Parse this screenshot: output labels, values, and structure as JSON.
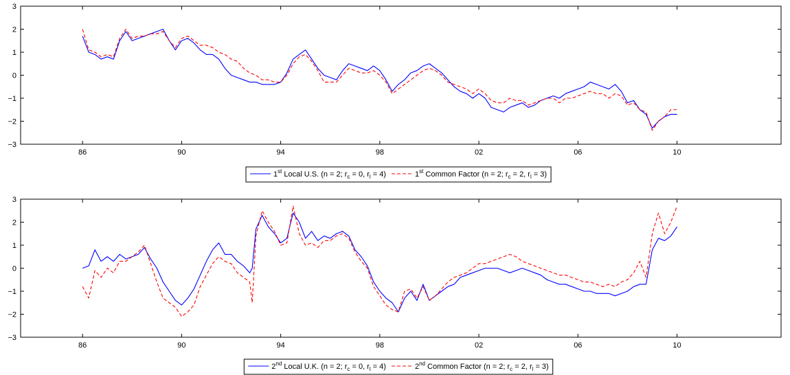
{
  "chart_data": [
    {
      "type": "line",
      "title": "",
      "xlabel": "",
      "ylabel": "",
      "xlim": [
        1983.5,
        2014.2
      ],
      "ylim": [
        -3,
        3
      ],
      "x_ticks": [
        1986,
        1990,
        1994,
        1998,
        2002,
        2006,
        2010
      ],
      "x_tick_labels": [
        "86",
        "90",
        "94",
        "98",
        "02",
        "06",
        "10"
      ],
      "y_ticks": [
        -3,
        -2,
        -1,
        0,
        1,
        2,
        3
      ],
      "y_tick_labels": [
        "−3",
        "−2",
        "−1",
        "0",
        "1",
        "2",
        "3"
      ],
      "grid": false,
      "legend_position": "bottom-center",
      "series": [
        {
          "legend": {
            "pre": "1",
            "sup": "st",
            "mid1": " Local U.S. (n = 2; r",
            "sub1": "c",
            "mid2": " = 0, r",
            "sub2": "l",
            "post": " = 4)"
          },
          "color": "#0000ff",
          "dash": "solid",
          "x": [
            1986.0,
            1986.25,
            1986.5,
            1986.75,
            1987.0,
            1987.25,
            1987.5,
            1987.75,
            1988.0,
            1988.25,
            1988.5,
            1988.75,
            1989.0,
            1989.25,
            1989.5,
            1989.75,
            1990.0,
            1990.25,
            1990.5,
            1990.75,
            1991.0,
            1991.25,
            1991.5,
            1991.75,
            1992.0,
            1992.25,
            1992.5,
            1992.75,
            1993.0,
            1993.25,
            1993.5,
            1993.75,
            1994.0,
            1994.25,
            1994.5,
            1994.75,
            1995.0,
            1995.25,
            1995.5,
            1995.75,
            1996.0,
            1996.25,
            1996.5,
            1996.75,
            1997.0,
            1997.25,
            1997.5,
            1997.75,
            1998.0,
            1998.25,
            1998.5,
            1998.75,
            1999.0,
            1999.25,
            1999.5,
            1999.75,
            2000.0,
            2000.25,
            2000.5,
            2000.75,
            2001.0,
            2001.25,
            2001.5,
            2001.75,
            2002.0,
            2002.25,
            2002.5,
            2002.75,
            2003.0,
            2003.25,
            2003.5,
            2003.75,
            2004.0,
            2004.25,
            2004.5,
            2004.75,
            2005.0,
            2005.25,
            2005.5,
            2005.75,
            2006.0,
            2006.25,
            2006.5,
            2006.75,
            2007.0,
            2007.25,
            2007.5,
            2007.75,
            2008.0,
            2008.25,
            2008.5,
            2008.75,
            2009.0,
            2009.25,
            2009.5,
            2009.75,
            2010.0
          ],
          "y": [
            1.7,
            1.0,
            0.9,
            0.7,
            0.8,
            0.7,
            1.5,
            1.9,
            1.5,
            1.6,
            1.7,
            1.8,
            1.9,
            2.0,
            1.5,
            1.1,
            1.5,
            1.6,
            1.4,
            1.1,
            0.9,
            0.9,
            0.7,
            0.3,
            0.0,
            -0.1,
            -0.2,
            -0.3,
            -0.3,
            -0.4,
            -0.4,
            -0.4,
            -0.3,
            0.1,
            0.7,
            0.9,
            1.1,
            0.7,
            0.3,
            0.0,
            -0.1,
            -0.2,
            0.2,
            0.5,
            0.4,
            0.3,
            0.2,
            0.4,
            0.2,
            -0.2,
            -0.7,
            -0.4,
            -0.2,
            0.1,
            0.2,
            0.4,
            0.5,
            0.3,
            0.1,
            -0.2,
            -0.5,
            -0.7,
            -0.8,
            -1.0,
            -0.8,
            -1.0,
            -1.4,
            -1.5,
            -1.6,
            -1.4,
            -1.3,
            -1.2,
            -1.4,
            -1.3,
            -1.1,
            -1.0,
            -0.9,
            -1.0,
            -0.8,
            -0.7,
            -0.6,
            -0.5,
            -0.3,
            -0.4,
            -0.5,
            -0.6,
            -0.4,
            -0.7,
            -1.2,
            -1.1,
            -1.5,
            -1.7,
            -2.3,
            -2.0,
            -1.8,
            -1.7,
            -1.7
          ]
        },
        {
          "legend": {
            "pre": "1",
            "sup": "st",
            "mid1": " Common Factor (n = 2; r",
            "sub1": "c",
            "mid2": " = 2, r",
            "sub2": "l",
            "post": " = 3)"
          },
          "color": "#ff0000",
          "dash": "dashed",
          "x": [
            1986.0,
            1986.25,
            1986.5,
            1986.75,
            1987.0,
            1987.25,
            1987.5,
            1987.75,
            1988.0,
            1988.25,
            1988.5,
            1988.75,
            1989.0,
            1989.25,
            1989.5,
            1989.75,
            1990.0,
            1990.25,
            1990.5,
            1990.75,
            1991.0,
            1991.25,
            1991.5,
            1991.75,
            1992.0,
            1992.25,
            1992.5,
            1992.75,
            1993.0,
            1993.25,
            1993.5,
            1993.75,
            1994.0,
            1994.25,
            1994.5,
            1994.75,
            1995.0,
            1995.25,
            1995.5,
            1995.75,
            1996.0,
            1996.25,
            1996.5,
            1996.75,
            1997.0,
            1997.25,
            1997.5,
            1997.75,
            1998.0,
            1998.25,
            1998.5,
            1998.75,
            1999.0,
            1999.25,
            1999.5,
            1999.75,
            2000.0,
            2000.25,
            2000.5,
            2000.75,
            2001.0,
            2001.25,
            2001.5,
            2001.75,
            2002.0,
            2002.25,
            2002.5,
            2002.75,
            2003.0,
            2003.25,
            2003.5,
            2003.75,
            2004.0,
            2004.25,
            2004.5,
            2004.75,
            2005.0,
            2005.25,
            2005.5,
            2005.75,
            2006.0,
            2006.25,
            2006.5,
            2006.75,
            2007.0,
            2007.25,
            2007.5,
            2007.75,
            2008.0,
            2008.25,
            2008.5,
            2008.75,
            2009.0,
            2009.25,
            2009.5,
            2009.75,
            2010.0
          ],
          "y": [
            2.0,
            1.1,
            1.0,
            0.8,
            0.9,
            0.8,
            1.6,
            2.0,
            1.6,
            1.7,
            1.7,
            1.8,
            1.8,
            1.9,
            1.5,
            1.2,
            1.6,
            1.7,
            1.5,
            1.3,
            1.3,
            1.2,
            1.0,
            0.9,
            0.7,
            0.6,
            0.3,
            0.1,
            0.0,
            -0.2,
            -0.2,
            -0.3,
            -0.3,
            0.0,
            0.5,
            0.8,
            0.9,
            0.6,
            0.2,
            -0.3,
            -0.3,
            -0.3,
            0.0,
            0.3,
            0.2,
            0.1,
            0.1,
            0.2,
            0.0,
            -0.3,
            -0.8,
            -0.6,
            -0.4,
            -0.2,
            0.0,
            0.2,
            0.3,
            0.2,
            0.0,
            -0.3,
            -0.4,
            -0.5,
            -0.6,
            -0.8,
            -0.6,
            -0.8,
            -1.1,
            -1.2,
            -1.2,
            -1.0,
            -1.1,
            -1.1,
            -1.3,
            -1.2,
            -1.1,
            -1.0,
            -1.0,
            -1.2,
            -1.0,
            -1.0,
            -0.9,
            -0.8,
            -0.7,
            -0.8,
            -0.8,
            -1.0,
            -0.8,
            -0.9,
            -1.3,
            -1.2,
            -1.5,
            -1.6,
            -2.4,
            -2.0,
            -1.8,
            -1.5,
            -1.5
          ]
        }
      ]
    },
    {
      "type": "line",
      "title": "",
      "xlabel": "",
      "ylabel": "",
      "xlim": [
        1983.5,
        2014.2
      ],
      "ylim": [
        -3,
        3
      ],
      "x_ticks": [
        1986,
        1990,
        1994,
        1998,
        2002,
        2006,
        2010
      ],
      "x_tick_labels": [
        "86",
        "90",
        "94",
        "98",
        "02",
        "06",
        "10"
      ],
      "y_ticks": [
        -3,
        -2,
        -1,
        0,
        1,
        2,
        3
      ],
      "y_tick_labels": [
        "−3",
        "−2",
        "−1",
        "0",
        "1",
        "2",
        "3"
      ],
      "grid": false,
      "legend_position": "bottom-center",
      "series": [
        {
          "legend": {
            "pre": "2",
            "sup": "nd",
            "mid1": " Local U.K. (n = 2; r",
            "sub1": "c",
            "mid2": " = 0, r",
            "sub2": "l",
            "post": " = 4)"
          },
          "color": "#0000ff",
          "dash": "solid",
          "x": [
            1986.0,
            1986.25,
            1986.5,
            1986.75,
            1987.0,
            1987.25,
            1987.5,
            1987.75,
            1988.0,
            1988.25,
            1988.5,
            1988.75,
            1989.0,
            1989.25,
            1989.5,
            1989.75,
            1990.0,
            1990.25,
            1990.5,
            1990.75,
            1991.0,
            1991.25,
            1991.5,
            1991.75,
            1992.0,
            1992.25,
            1992.5,
            1992.75,
            1992.85,
            1993.0,
            1993.25,
            1993.5,
            1993.75,
            1994.0,
            1994.25,
            1994.5,
            1994.75,
            1995.0,
            1995.25,
            1995.5,
            1995.75,
            1996.0,
            1996.25,
            1996.5,
            1996.75,
            1997.0,
            1997.25,
            1997.5,
            1997.75,
            1998.0,
            1998.25,
            1998.5,
            1998.75,
            1999.0,
            1999.25,
            1999.5,
            1999.75,
            2000.0,
            2000.25,
            2000.5,
            2000.75,
            2001.0,
            2001.25,
            2001.5,
            2001.75,
            2002.0,
            2002.25,
            2002.5,
            2002.75,
            2003.0,
            2003.25,
            2003.5,
            2003.75,
            2004.0,
            2004.25,
            2004.5,
            2004.75,
            2005.0,
            2005.25,
            2005.5,
            2005.75,
            2006.0,
            2006.25,
            2006.5,
            2006.75,
            2007.0,
            2007.25,
            2007.5,
            2007.75,
            2008.0,
            2008.25,
            2008.5,
            2008.75,
            2009.0,
            2009.25,
            2009.5,
            2009.75,
            2010.0
          ],
          "y": [
            0.0,
            0.1,
            0.8,
            0.3,
            0.5,
            0.3,
            0.6,
            0.4,
            0.5,
            0.6,
            0.9,
            0.4,
            0.0,
            -0.6,
            -1.0,
            -1.4,
            -1.6,
            -1.3,
            -0.9,
            -0.3,
            0.3,
            0.8,
            1.1,
            0.6,
            0.6,
            0.3,
            0.1,
            -0.2,
            0.0,
            1.7,
            2.3,
            1.8,
            1.5,
            1.1,
            1.3,
            2.4,
            2.0,
            1.3,
            1.6,
            1.2,
            1.4,
            1.3,
            1.5,
            1.6,
            1.4,
            0.8,
            0.5,
            0.1,
            -0.6,
            -1.0,
            -1.3,
            -1.5,
            -1.9,
            -1.3,
            -1.0,
            -1.4,
            -0.7,
            -1.4,
            -1.2,
            -1.0,
            -0.8,
            -0.7,
            -0.4,
            -0.3,
            -0.2,
            -0.1,
            0.0,
            0.0,
            0.0,
            -0.1,
            -0.2,
            -0.1,
            0.0,
            -0.1,
            -0.2,
            -0.3,
            -0.5,
            -0.6,
            -0.7,
            -0.7,
            -0.8,
            -0.9,
            -1.0,
            -1.0,
            -1.1,
            -1.1,
            -1.1,
            -1.2,
            -1.1,
            -1.0,
            -0.8,
            -0.7,
            -0.7,
            0.8,
            1.3,
            1.2,
            1.4,
            1.8
          ]
        },
        {
          "legend": {
            "pre": "2",
            "sup": "nd",
            "mid1": " Common Factor (n = 2; r",
            "sub1": "c",
            "mid2": " = 2, r",
            "sub2": "l",
            "post": " = 3)"
          },
          "color": "#ff0000",
          "dash": "dashed",
          "x": [
            1986.0,
            1986.25,
            1986.5,
            1986.75,
            1987.0,
            1987.25,
            1987.5,
            1987.75,
            1988.0,
            1988.25,
            1988.5,
            1988.75,
            1989.0,
            1989.25,
            1989.5,
            1989.75,
            1990.0,
            1990.25,
            1990.5,
            1990.75,
            1991.0,
            1991.25,
            1991.5,
            1991.75,
            1992.0,
            1992.25,
            1992.5,
            1992.75,
            1992.85,
            1993.0,
            1993.25,
            1993.5,
            1993.75,
            1994.0,
            1994.25,
            1994.5,
            1994.75,
            1995.0,
            1995.25,
            1995.5,
            1995.75,
            1996.0,
            1996.25,
            1996.5,
            1996.75,
            1997.0,
            1997.25,
            1997.5,
            1997.75,
            1998.0,
            1998.25,
            1998.5,
            1998.75,
            1999.0,
            1999.25,
            1999.5,
            1999.75,
            2000.0,
            2000.25,
            2000.5,
            2000.75,
            2001.0,
            2001.25,
            2001.5,
            2001.75,
            2002.0,
            2002.25,
            2002.5,
            2002.75,
            2003.0,
            2003.25,
            2003.5,
            2003.75,
            2004.0,
            2004.25,
            2004.5,
            2004.75,
            2005.0,
            2005.25,
            2005.5,
            2005.75,
            2006.0,
            2006.25,
            2006.5,
            2006.75,
            2007.0,
            2007.25,
            2007.5,
            2007.75,
            2008.0,
            2008.25,
            2008.5,
            2008.75,
            2009.0,
            2009.25,
            2009.5,
            2009.75,
            2010.0
          ],
          "y": [
            -0.8,
            -1.3,
            -0.1,
            -0.4,
            0.0,
            -0.2,
            0.3,
            0.3,
            0.5,
            0.7,
            1.0,
            0.2,
            -0.6,
            -1.3,
            -1.5,
            -1.7,
            -2.1,
            -1.9,
            -1.6,
            -0.8,
            -0.3,
            0.2,
            0.5,
            0.3,
            0.2,
            -0.2,
            -0.4,
            -0.6,
            -1.5,
            1.4,
            2.5,
            2.0,
            1.6,
            1.0,
            1.1,
            2.7,
            1.5,
            1.0,
            1.1,
            0.9,
            1.2,
            1.2,
            1.4,
            1.5,
            1.3,
            0.7,
            0.3,
            0.0,
            -0.8,
            -1.2,
            -1.6,
            -1.8,
            -1.9,
            -1.0,
            -0.9,
            -1.3,
            -0.8,
            -1.4,
            -1.2,
            -0.9,
            -0.6,
            -0.4,
            -0.3,
            -0.2,
            0.0,
            0.2,
            0.2,
            0.3,
            0.4,
            0.5,
            0.6,
            0.5,
            0.3,
            0.2,
            0.1,
            0.0,
            -0.1,
            -0.2,
            -0.3,
            -0.3,
            -0.4,
            -0.5,
            -0.6,
            -0.6,
            -0.7,
            -0.8,
            -0.7,
            -0.8,
            -0.6,
            -0.5,
            -0.2,
            0.3,
            -0.4,
            1.5,
            2.4,
            1.5,
            2.0,
            2.7
          ]
        }
      ]
    }
  ]
}
